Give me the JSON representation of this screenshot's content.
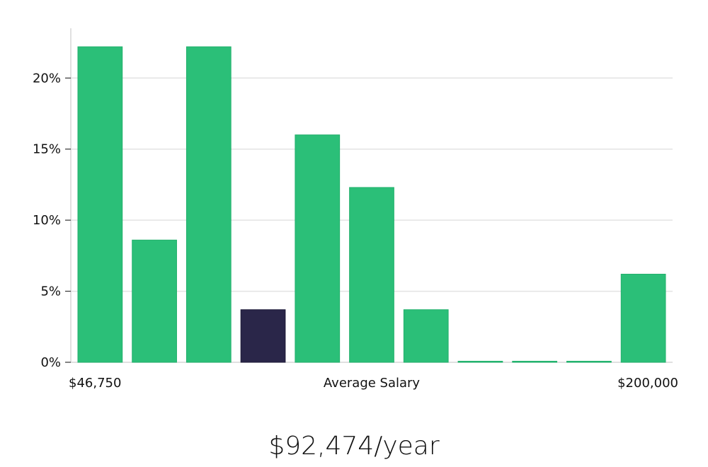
{
  "summary": {
    "average_salary_text": "$92,474/year"
  },
  "colors": {
    "bar": "#2bbf78",
    "highlight_bar": "#2a2649",
    "grid": "#e3e3e3",
    "axis": "#d6d6d6"
  },
  "chart_data": {
    "type": "bar",
    "title": "",
    "xlabel": "Average Salary",
    "ylabel": "",
    "x_start_label": "$46,750",
    "x_end_label": "$200,000",
    "ylim": [
      0,
      0.235
    ],
    "yticks": [
      0,
      0.05,
      0.1,
      0.15,
      0.2
    ],
    "ytick_labels": [
      "0%",
      "5%",
      "10%",
      "15%",
      "20%"
    ],
    "grid": true,
    "values": [
      0.222,
      0.086,
      0.222,
      0.037,
      0.16,
      0.123,
      0.037,
      0.0,
      0.0,
      0.0,
      0.062
    ],
    "highlight_index": 3
  }
}
